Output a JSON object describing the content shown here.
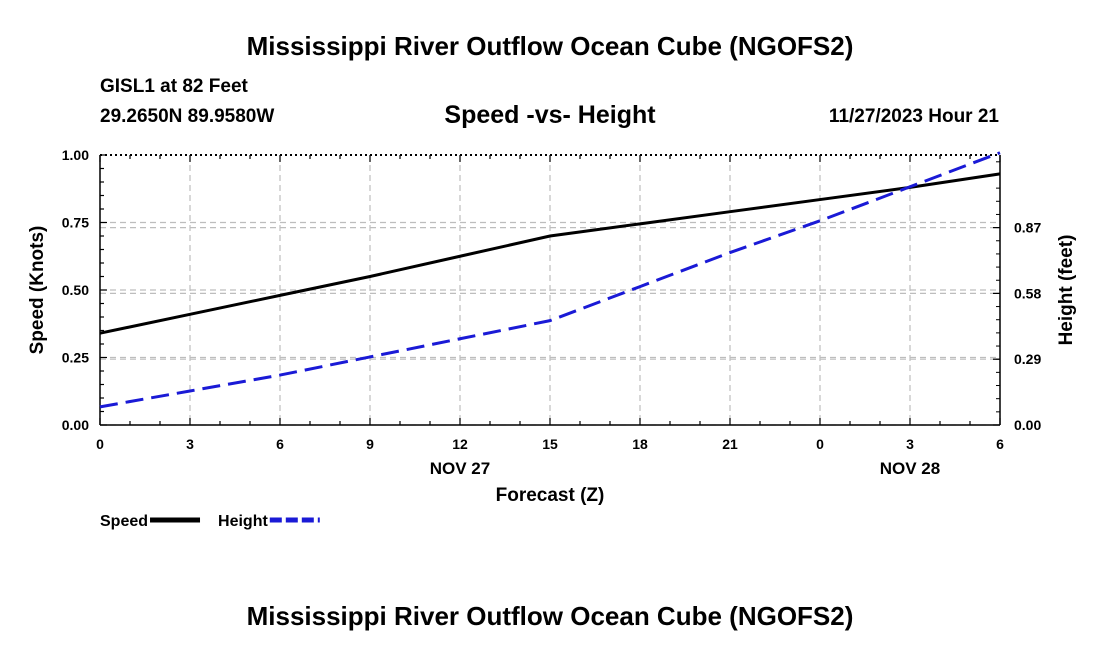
{
  "header": {
    "title": "Mississippi River Outflow Ocean Cube (NGOFS2)",
    "station": "GISL1 at 82 Feet",
    "coords": "29.2650N  89.9580W",
    "subtitle": "Speed -vs- Height",
    "datetime": "11/27/2023 Hour 21"
  },
  "footer": {
    "title": "Mississippi River Outflow Ocean Cube (NGOFS2)"
  },
  "chart_data": {
    "type": "line",
    "title": "Speed -vs- Height",
    "xlabel": "Forecast (Z)",
    "ylabel": "Speed (Knots)",
    "ylabel_right": "Height (feet)",
    "x": [
      0,
      3,
      6,
      9,
      12,
      15,
      18,
      21,
      24,
      27,
      30
    ],
    "x_tick_labels": [
      "0",
      "3",
      "6",
      "9",
      "12",
      "15",
      "18",
      "21",
      "0",
      "3",
      "6"
    ],
    "x_date_labels": [
      {
        "x": 12,
        "label": "NOV 27"
      },
      {
        "x": 27,
        "label": "NOV 28"
      }
    ],
    "xlim": [
      0,
      30
    ],
    "ylim": [
      0,
      1
    ],
    "y_ticks": [
      0,
      0.25,
      0.5,
      0.75,
      1
    ],
    "y_tick_labels": [
      "0.00",
      "0.25",
      "0.50",
      "0.75",
      "1.00"
    ],
    "ylim_right": [
      0,
      1.19
    ],
    "y_ticks_right": [
      0,
      0.29,
      0.58,
      0.87
    ],
    "y_tick_labels_right": [
      "0.00",
      "0.29",
      "0.58",
      "0.87"
    ],
    "grid": true,
    "legend_position": "bottom-left",
    "series": [
      {
        "name": "Speed",
        "axis": "left",
        "color": "#000000",
        "dash": "solid",
        "values": [
          0.34,
          0.41,
          0.48,
          0.55,
          0.625,
          0.7,
          0.745,
          0.79,
          0.835,
          0.88,
          0.93
        ]
      },
      {
        "name": "Height",
        "axis": "right",
        "color": "#1a1ad6",
        "dash": "dashed",
        "values": [
          0.08,
          0.15,
          0.22,
          0.3,
          0.38,
          0.46,
          0.61,
          0.76,
          0.9,
          1.05,
          1.2
        ]
      }
    ]
  }
}
